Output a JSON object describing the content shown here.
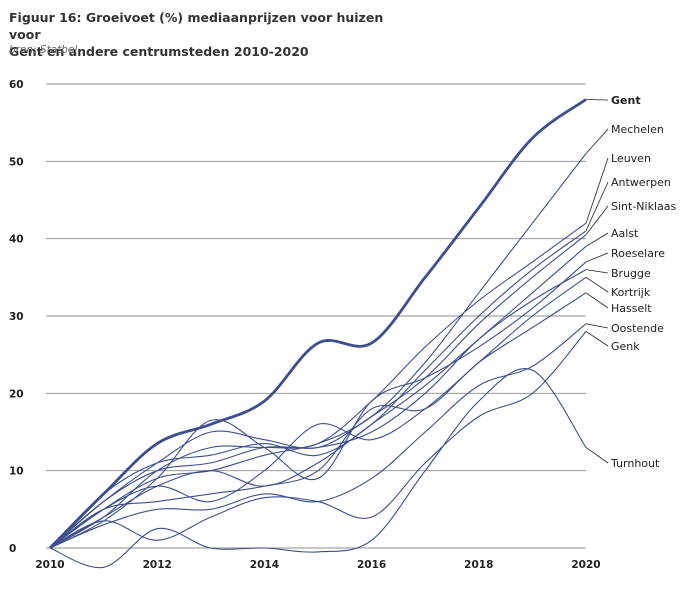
{
  "header": {
    "title_line1": "Figuur 16: Groeivoet (%) mediaanprijzen voor huizen voor",
    "title_line2": "Gent en andere centrumsteden 2010-2020",
    "source": "bron: Statbel"
  },
  "chart_data": {
    "type": "line",
    "title": "Figuur 16: Groeivoet (%) mediaanprijzen voor huizen voor Gent en andere centrumsteden 2010-2020",
    "xlabel": "",
    "ylabel": "",
    "xlim": [
      2010,
      2020
    ],
    "ylim": [
      0,
      60
    ],
    "x_ticks": [
      2010,
      2012,
      2014,
      2016,
      2018,
      2020
    ],
    "y_ticks": [
      0,
      10,
      20,
      30,
      40,
      50,
      60
    ],
    "grid": "horizontal",
    "legend": "end-labels-right",
    "line_color": "#3d4f8c",
    "x": [
      2010,
      2011,
      2012,
      2013,
      2014,
      2015,
      2016,
      2017,
      2018,
      2019,
      2020
    ],
    "series": [
      {
        "name": "Gent",
        "highlight": true,
        "values": [
          0,
          7,
          13.5,
          16,
          19,
          26.5,
          26.5,
          35,
          44,
          53,
          58
        ]
      },
      {
        "name": "Mechelen",
        "values": [
          0,
          5,
          9,
          10,
          12,
          13.5,
          17,
          24,
          33,
          42,
          51
        ]
      },
      {
        "name": "Leuven",
        "values": [
          0,
          4,
          10,
          13,
          13,
          13.5,
          19,
          26,
          32,
          37,
          42
        ]
      },
      {
        "name": "Antwerpen",
        "values": [
          0,
          7,
          11,
          12,
          13.5,
          12,
          16,
          23,
          30,
          36,
          41
        ]
      },
      {
        "name": "Sint-Niklaas",
        "values": [
          0,
          6,
          11,
          15,
          14,
          13,
          17,
          22,
          29,
          35,
          40.5
        ]
      },
      {
        "name": "Aalst",
        "values": [
          0,
          4,
          8,
          10,
          8,
          11,
          16,
          21,
          27,
          33,
          39
        ]
      },
      {
        "name": "Roeselare",
        "values": [
          0,
          3.5,
          9,
          16.5,
          13,
          9,
          19,
          22,
          26,
          31,
          37
        ]
      },
      {
        "name": "Brugge",
        "values": [
          0,
          6,
          10,
          11,
          13,
          13,
          15,
          20,
          27,
          32,
          36
        ]
      },
      {
        "name": "Kortrijk",
        "values": [
          0,
          5,
          8,
          6,
          10,
          16,
          14,
          18,
          24,
          30,
          35
        ]
      },
      {
        "name": "Hasselt",
        "values": [
          0,
          5,
          6,
          7,
          8,
          10,
          18,
          18,
          24,
          28.5,
          33
        ]
      },
      {
        "name": "Oostende",
        "values": [
          0,
          3,
          5,
          5,
          7,
          6,
          9,
          15,
          21,
          23.5,
          29
        ]
      },
      {
        "name": "Genk",
        "values": [
          0,
          3.5,
          1,
          4,
          6.5,
          6,
          4,
          11,
          17,
          20,
          28
        ]
      },
      {
        "name": "Turnhout",
        "values": [
          0,
          -2.5,
          2.5,
          0,
          0,
          -0.5,
          1,
          10,
          19,
          23,
          13
        ]
      }
    ]
  }
}
